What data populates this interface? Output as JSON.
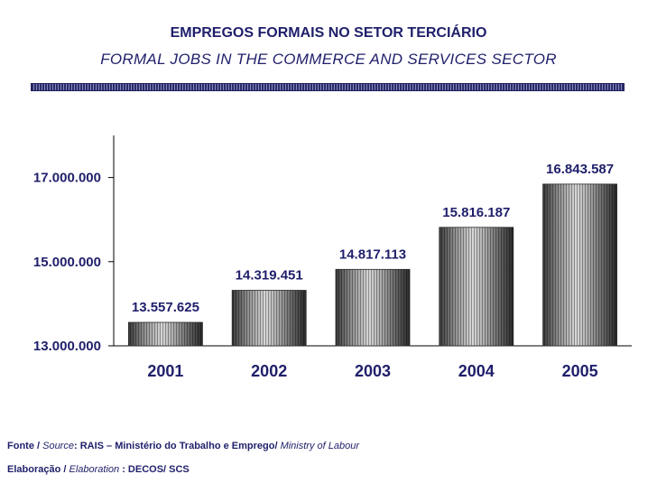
{
  "title": "EMPREGOS FORMAIS NO SETOR TERCIÁRIO",
  "subtitle": "FORMAL JOBS IN THE COMMERCE AND SERVICES SECTOR",
  "chart_data": {
    "type": "bar",
    "categories": [
      "2001",
      "2002",
      "2003",
      "2004",
      "2005"
    ],
    "values": [
      13557625,
      14319451,
      14817113,
      15816187,
      16843587
    ],
    "value_labels": [
      "13.557.625",
      "14.319.451",
      "14.817.113",
      "15.816.187",
      "16.843.587"
    ],
    "y_ticks": [
      13000000,
      15000000,
      17000000
    ],
    "y_tick_labels": [
      "13.000.000",
      "15.000.000",
      "17.000.000"
    ],
    "ylim": [
      13000000,
      18000000
    ],
    "grid": false,
    "bar_color": "#6a6a6a",
    "label_color": "#1f1f6b"
  },
  "footer": {
    "source_pt": "Fonte / ",
    "source_en": "Source",
    "source_text": ": RAIS – Ministério do Trabalho e Emprego/ ",
    "source_en2": "Ministry of Labour",
    "elab_pt": "Elaboração / ",
    "elab_en": "Elaboration",
    "elab_text": " : DECOS/ SCS"
  }
}
